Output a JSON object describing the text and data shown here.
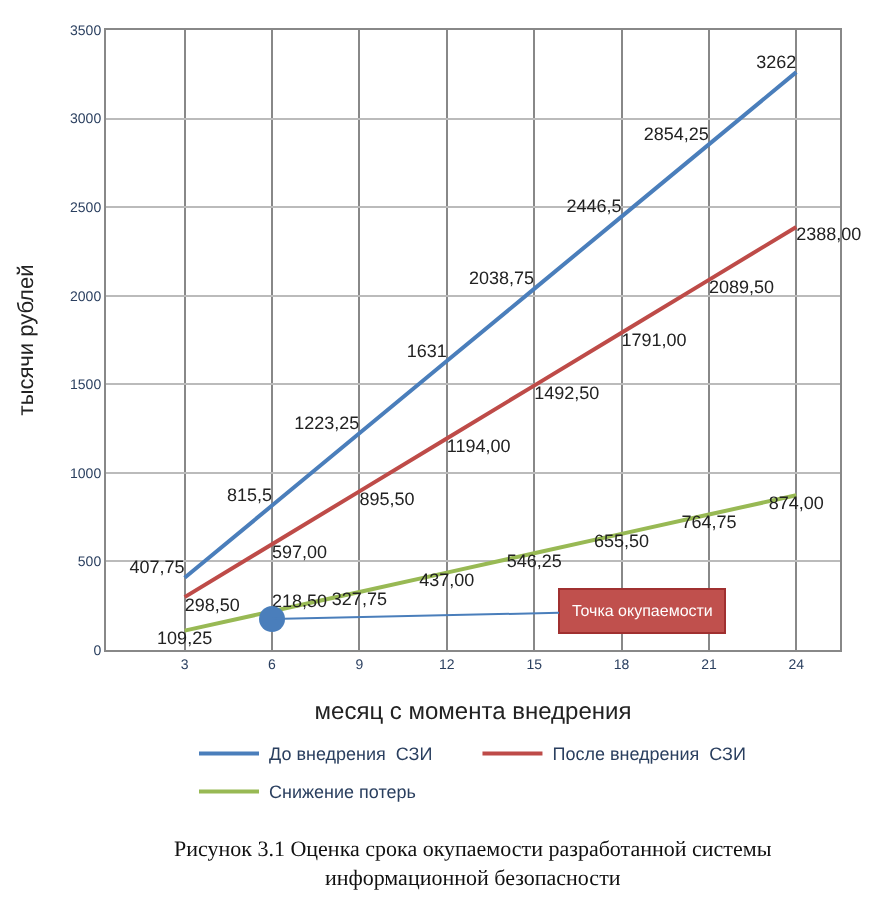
{
  "chart_data": {
    "type": "line",
    "xlabel": "месяц с момента внедрения",
    "ylabel": "тысячи рублей",
    "categories": [
      "3",
      "6",
      "9",
      "12",
      "15",
      "18",
      "21",
      "24"
    ],
    "ylim": [
      0,
      3500
    ],
    "yticks": [
      0,
      500,
      1000,
      1500,
      2000,
      2500,
      3000,
      3500
    ],
    "grid": true,
    "legend": "bottom",
    "marker": "none",
    "line_style": "solid",
    "series": [
      {
        "name": "До внедрения  СЗИ",
        "color": "#4a7ebb",
        "values": [
          407.75,
          815.5,
          1223.25,
          1631,
          2038.75,
          2446.5,
          2854.25,
          3262
        ],
        "value_labels": [
          "407,75",
          "815,5",
          "1223,25",
          "1631",
          "2038,75",
          "2446,5",
          "2854,25",
          "3262"
        ]
      },
      {
        "name": "После внедрения  СЗИ",
        "color": "#be4b48",
        "values": [
          298.5,
          597,
          895.5,
          1194,
          1492.5,
          1791,
          2089.5,
          2388
        ],
        "value_labels": [
          "298,50",
          "597,00",
          "895,50",
          "1194,00",
          "1492,50",
          "1791,00",
          "2089,50",
          "2388,00"
        ]
      },
      {
        "name": "Снижение потерь",
        "color": "#98b954",
        "values": [
          109.25,
          218.5,
          327.75,
          437,
          546.25,
          655.5,
          764.75,
          874
        ],
        "value_labels": [
          "109,25",
          "218,50",
          "327,75",
          "437,00",
          "546,25",
          "655,50",
          "764,75",
          "874,00"
        ]
      }
    ],
    "annotations": [
      {
        "text": "Точка окупаемости",
        "x": "6",
        "y": 175
      },
      "Рисунок 3.1 Оценка срока окупаемости разработанной системы\nинформационной безопасности"
    ]
  }
}
